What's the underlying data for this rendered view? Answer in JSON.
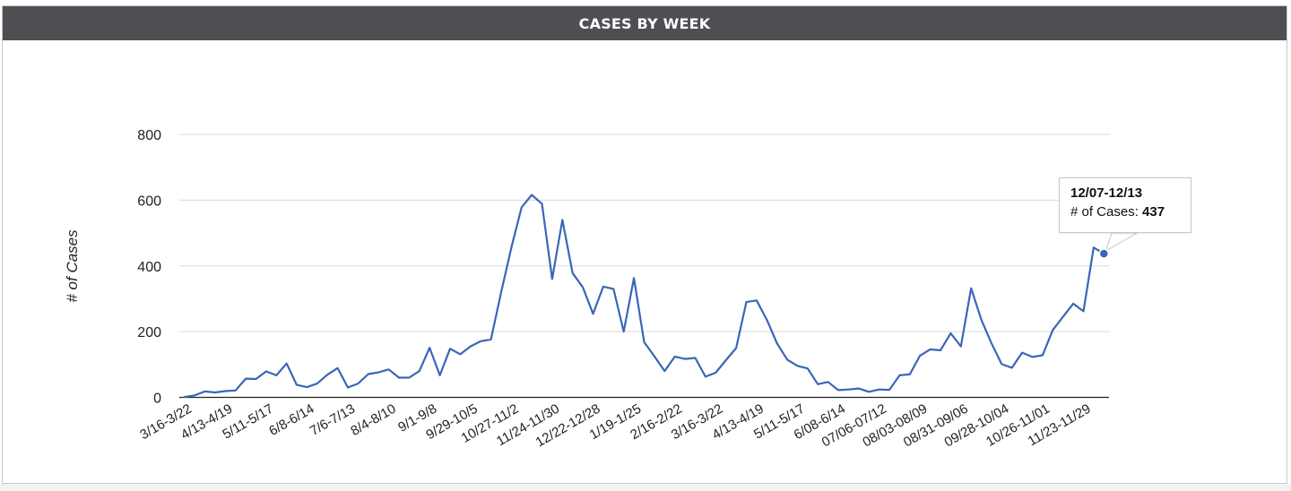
{
  "header": {
    "title": "CASES BY WEEK"
  },
  "tooltip": {
    "title": "12/07-12/13",
    "label": "# of Cases: ",
    "value": "437"
  },
  "colors": {
    "line": "#3a66b8",
    "header_bg": "#4e4f52",
    "grid": "#d9d9d9"
  },
  "chart_data": {
    "type": "line",
    "title": "CASES BY WEEK",
    "ylabel": "# of Cases",
    "xlabel": "",
    "ylim": [
      0,
      800
    ],
    "yticks": [
      0,
      200,
      400,
      600,
      800
    ],
    "grid": true,
    "legend": "none",
    "x_tick_labels": [
      "3/16-3/22",
      "4/13-4/19",
      "5/11-5/17",
      "6/8-6/14",
      "7/6-7/13",
      "8/4-8/10",
      "9/1-9/8",
      "9/29-10/5",
      "10/27-11/2",
      "11/24-11/30",
      "12/22-12/28",
      "1/19-1/25",
      "2/16-2/22",
      "3/16-3/22",
      "4/13-4/19",
      "5/11-5/17",
      "6/08-6/14",
      "07/06-07/12",
      "08/03-08/09",
      "08/31-09/06",
      "09/28-10/04",
      "10/26-11/01",
      "11/23-11/29"
    ],
    "series": [
      {
        "values": [
          1,
          6,
          18,
          15,
          19,
          21,
          57,
          56,
          79,
          67,
          103,
          38,
          31,
          42,
          69,
          89,
          30,
          42,
          71,
          76,
          85,
          60,
          60,
          80,
          151,
          67,
          148,
          131,
          155,
          171,
          176,
          320,
          456,
          578,
          616,
          589,
          360,
          540,
          378,
          335,
          254,
          337,
          330,
          200,
          363,
          168,
          125,
          80,
          124,
          117,
          120,
          63,
          75,
          113,
          150,
          290,
          295,
          237,
          165,
          115,
          96,
          88,
          40,
          47,
          22,
          24,
          27,
          17,
          24,
          23,
          67,
          70,
          127,
          146,
          143,
          195,
          155,
          332,
          236,
          164,
          101,
          90,
          136,
          123,
          128,
          205,
          245,
          285,
          262,
          456,
          437
        ]
      }
    ],
    "highlight": {
      "index": 90,
      "label": "12/07-12/13",
      "value": 437
    }
  }
}
